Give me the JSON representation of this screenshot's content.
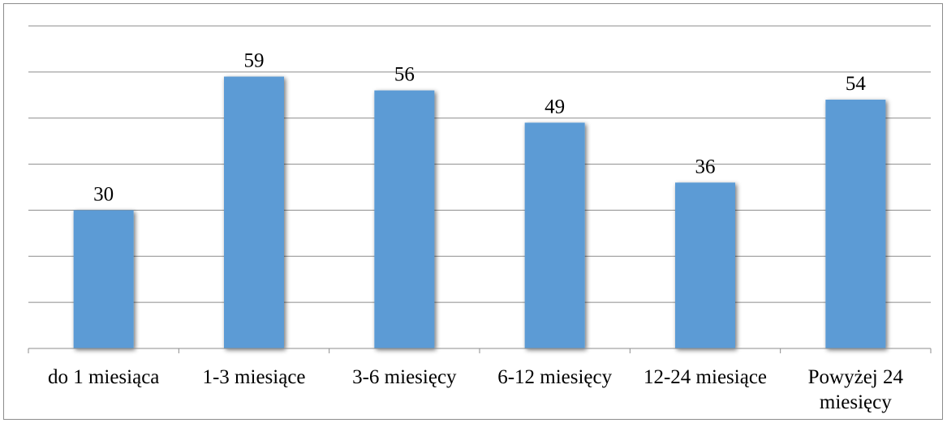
{
  "chart_data": {
    "type": "bar",
    "categories": [
      [
        "do 1 miesiąca"
      ],
      [
        "1-3 miesiące"
      ],
      [
        "3-6 miesięcy"
      ],
      [
        "6-12 miesięcy"
      ],
      [
        "12-24 miesiące"
      ],
      [
        "Powyżej 24",
        "miesięcy"
      ]
    ],
    "values": [
      30,
      59,
      56,
      49,
      36,
      54
    ],
    "ylim": [
      0,
      70
    ],
    "grid": true,
    "bar_color": "#5b9bd5",
    "grid_color": "#8c8c8c"
  }
}
